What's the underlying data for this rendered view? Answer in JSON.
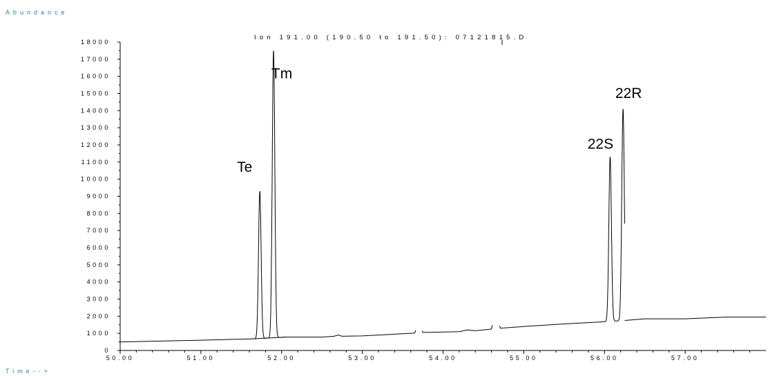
{
  "chart_data": {
    "type": "line",
    "title": "Ion 191.00 (190.50 to 191.50): 07121815.D",
    "ylabel": "Abundance",
    "xlabel": "Time-->",
    "xlim": [
      50.0,
      58.0
    ],
    "ylim": [
      0,
      18000
    ],
    "x_ticks": [
      50.0,
      51.0,
      52.0,
      53.0,
      54.0,
      55.0,
      56.0,
      57.0
    ],
    "x_tick_labels": [
      "50.00",
      "51.00",
      "52.00",
      "53.00",
      "54.00",
      "55.00",
      "56.00",
      "57.00"
    ],
    "y_ticks": [
      0,
      1000,
      2000,
      3000,
      4000,
      5000,
      6000,
      7000,
      8000,
      9000,
      10000,
      11000,
      12000,
      13000,
      14000,
      15000,
      16000,
      17000,
      18000
    ],
    "y_tick_labels": [
      "0",
      "1000",
      "2000",
      "3000",
      "4000",
      "5000",
      "6000",
      "7000",
      "8000",
      "9000",
      "10000",
      "11000",
      "12000",
      "13000",
      "14000",
      "15000",
      "16000",
      "17000",
      "18000"
    ],
    "grid": false,
    "colors": {
      "trace": "#000000",
      "axis": "#000000",
      "label": "#1a8a9a"
    },
    "baseline_segments": [
      {
        "x": [
          50.0,
          51.0,
          51.65
        ],
        "y": [
          500,
          600,
          680
        ]
      },
      {
        "x": [
          51.65,
          52.05
        ],
        "y": [
          680,
          780
        ]
      },
      {
        "x": [
          52.05,
          52.5,
          52.65,
          52.7,
          52.75,
          53.0,
          53.5,
          53.65
        ],
        "y": [
          780,
          780,
          830,
          900,
          830,
          850,
          980,
          1020
        ]
      },
      {
        "x": [
          53.65,
          53.66
        ],
        "y": [
          1020,
          1180
        ]
      },
      {
        "x": [
          53.74,
          53.75,
          54.2,
          54.3,
          54.4,
          54.6
        ],
        "y": [
          1150,
          1050,
          1100,
          1200,
          1150,
          1250
        ]
      },
      {
        "x": [
          54.6,
          54.61
        ],
        "y": [
          1250,
          1480
        ]
      },
      {
        "x": [
          54.7,
          54.71,
          55.0,
          55.5,
          55.9
        ],
        "y": [
          1450,
          1300,
          1400,
          1550,
          1650
        ]
      },
      {
        "x": [
          56.25,
          56.5,
          57.0,
          57.5,
          58.0
        ],
        "y": [
          1750,
          1850,
          1850,
          1950,
          1950
        ]
      }
    ],
    "peaks": [
      {
        "label": "Te",
        "x": 51.73,
        "y": 9300
      },
      {
        "label": "Tm",
        "x": 51.9,
        "y": 17500
      },
      {
        "label": "22S",
        "x": 56.07,
        "y": 11300
      },
      {
        "label": "22R",
        "x": 56.23,
        "y": 14100
      }
    ],
    "annotations": [
      "Te",
      "Tm",
      "22S",
      "22R"
    ]
  }
}
